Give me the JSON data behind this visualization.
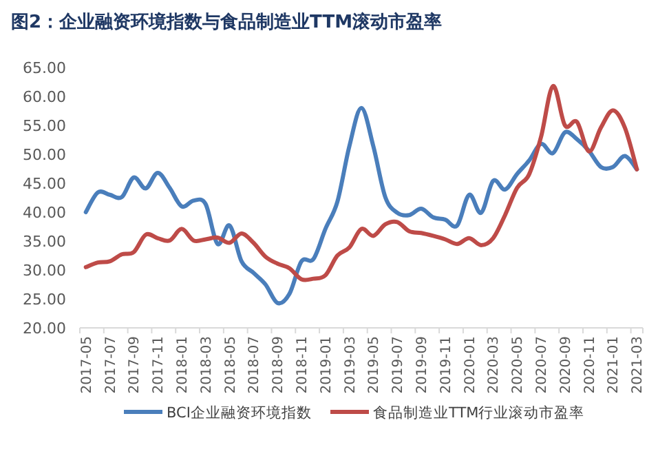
{
  "chart_data": {
    "type": "line",
    "title": "图2：企业融资环境指数与食品制造业TTM滚动市盈率",
    "categories": [
      "2017-05",
      null,
      "2017-07",
      null,
      "2017-09",
      null,
      "2017-11",
      null,
      "2018-01",
      null,
      "2018-03",
      null,
      "2018-05",
      null,
      "2018-07",
      null,
      "2018-09",
      null,
      "2018-11",
      null,
      "2019-01",
      null,
      "2019-03",
      null,
      "2019-05",
      null,
      "2019-07",
      null,
      "2019-09",
      null,
      "2019-11",
      null,
      "2020-01",
      null,
      "2020-03",
      null,
      "2020-05",
      null,
      "2020-07",
      null,
      "2020-09",
      null,
      "2020-11",
      null,
      "2021-01",
      null,
      "2021-03"
    ],
    "series": [
      {
        "name": "BCI企业融资环境指数",
        "color": "#4a7ebb",
        "values": [
          40.0,
          43.4,
          43.0,
          42.6,
          46.0,
          44.1,
          46.8,
          44.2,
          41.0,
          42.0,
          41.4,
          34.5,
          37.7,
          31.5,
          29.5,
          27.5,
          24.3,
          25.9,
          31.5,
          31.9,
          37.1,
          41.8,
          51.4,
          58.0,
          51.4,
          42.6,
          39.9,
          39.5,
          40.6,
          39.1,
          38.7,
          37.7,
          43.0,
          39.9,
          45.4,
          43.9,
          46.6,
          48.9,
          51.8,
          50.2,
          53.8,
          52.6,
          50.6,
          47.8,
          47.8,
          49.7,
          47.4
        ]
      },
      {
        "name": "食品制造业TTM行业滚动市盈率",
        "color": "#be4b48",
        "values": [
          30.5,
          31.3,
          31.5,
          32.7,
          33.1,
          36.1,
          35.5,
          35.1,
          37.1,
          35.1,
          35.3,
          35.6,
          34.7,
          36.3,
          34.7,
          32.3,
          31.1,
          30.3,
          28.4,
          28.5,
          29.1,
          32.5,
          33.9,
          37.1,
          35.9,
          37.9,
          38.3,
          36.7,
          36.4,
          35.9,
          35.3,
          34.5,
          35.5,
          34.3,
          35.5,
          39.5,
          44.2,
          46.5,
          53.0,
          61.8,
          55.0,
          55.6,
          50.5,
          54.6,
          57.6,
          54.6,
          47.4
        ]
      }
    ],
    "ylim": [
      20,
      65
    ],
    "yticks": [
      {
        "value": 20,
        "label": "20.00"
      },
      {
        "value": 25,
        "label": "25.00"
      },
      {
        "value": 30,
        "label": "30.00"
      },
      {
        "value": 35,
        "label": "35.00"
      },
      {
        "value": 40,
        "label": "40.00"
      },
      {
        "value": 45,
        "label": "45.00"
      },
      {
        "value": 50,
        "label": "50.00"
      },
      {
        "value": 55,
        "label": "55.00"
      },
      {
        "value": 60,
        "label": "60.00"
      },
      {
        "value": 65,
        "label": "65.00"
      }
    ],
    "grid": false,
    "legend": "bottom",
    "marker": "none",
    "line_style": "solid"
  }
}
